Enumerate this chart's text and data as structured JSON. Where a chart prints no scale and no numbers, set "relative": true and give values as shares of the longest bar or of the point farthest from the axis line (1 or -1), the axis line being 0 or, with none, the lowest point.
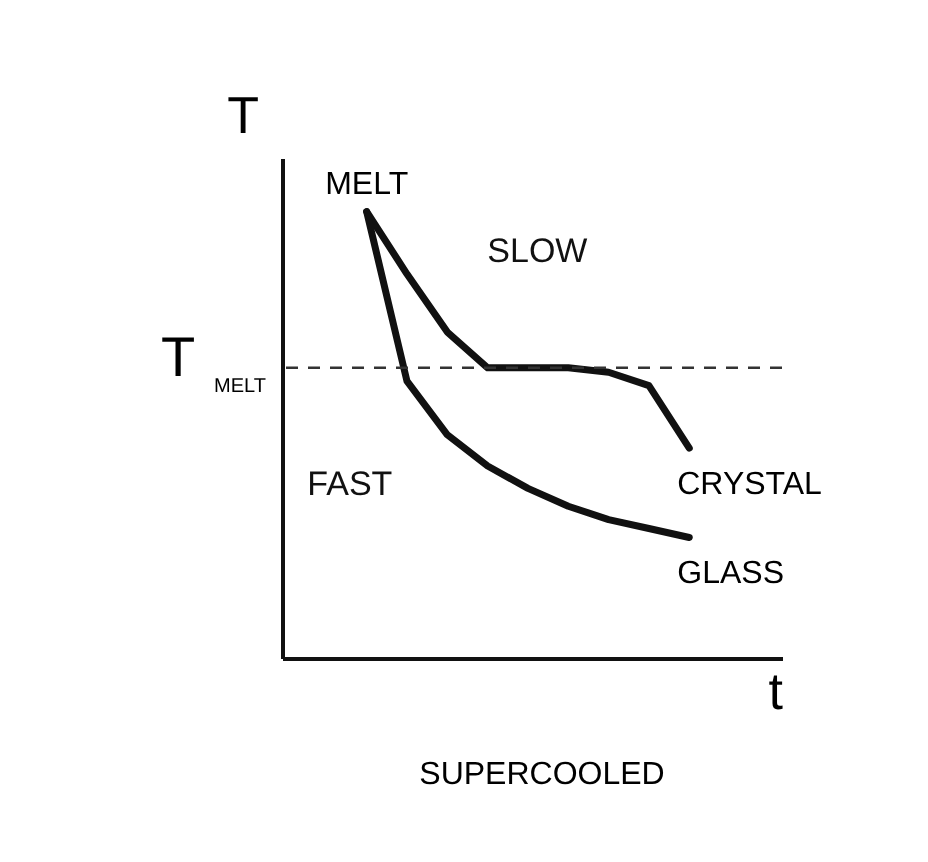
{
  "chart_data": {
    "type": "line",
    "relative": true,
    "xlabel": "t",
    "ylabel": "T",
    "grid": false,
    "legend": false,
    "marker": "none",
    "line_style": "solid",
    "categories": [
      null,
      null,
      null,
      null,
      null,
      null,
      null,
      null,
      null
    ],
    "series": [
      {
        "name": "SLOW",
        "color": "#111111",
        "values": [
          1,
          0.86,
          0.73,
          0.65,
          0.65,
          0.65,
          0.64,
          0.61,
          0.47
        ]
      },
      {
        "name": "FAST",
        "color": "#111111",
        "values": [
          1,
          0.62,
          0.5,
          0.43,
          0.38,
          0.34,
          0.31,
          0.29,
          0.27
        ]
      }
    ],
    "ref_lines": [
      {
        "axis": "y",
        "value": 0.65,
        "label": "T$_{MELT}$",
        "line_style": "dashed",
        "color": "#333333"
      }
    ],
    "annotations": [
      "MELT",
      "CRYSTAL",
      "GLASS",
      "SUPERCOOLED"
    ]
  }
}
